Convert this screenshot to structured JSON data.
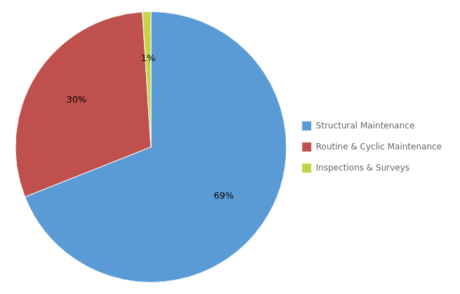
{
  "chart_data": {
    "type": "pie",
    "categories": [
      "Structural Maintenance",
      "Routine & Cyclic Maintenance",
      "Inspections & Surveys"
    ],
    "values": [
      69,
      30,
      1
    ],
    "value_labels": [
      "69%",
      "30%",
      "1%"
    ],
    "colors": [
      "#5B9BD5",
      "#C0504D",
      "#C4D44A"
    ],
    "data_labels": true,
    "legend": "right"
  }
}
